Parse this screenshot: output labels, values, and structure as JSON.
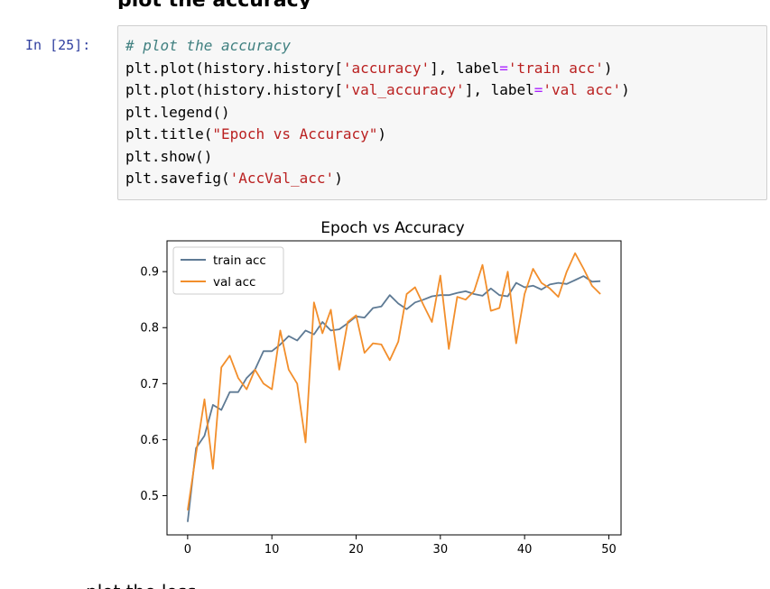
{
  "page": {
    "top_partial_text": "plot the accuracy",
    "bottom_partial_text": "plot the loss"
  },
  "cell": {
    "prompt": "In [25]:",
    "code_lines": [
      {
        "parts": [
          {
            "t": "# plot the accuracy",
            "c": "comment"
          }
        ]
      },
      {
        "parts": [
          {
            "t": "plt.plot(history.history[",
            "c": ""
          },
          {
            "t": "'accuracy'",
            "c": "str"
          },
          {
            "t": "], label",
            "c": ""
          },
          {
            "t": "=",
            "c": "eq"
          },
          {
            "t": "'train acc'",
            "c": "str"
          },
          {
            "t": ")",
            "c": ""
          }
        ]
      },
      {
        "parts": [
          {
            "t": "plt.plot(history.history[",
            "c": ""
          },
          {
            "t": "'val_accuracy'",
            "c": "str"
          },
          {
            "t": "], label",
            "c": ""
          },
          {
            "t": "=",
            "c": "eq"
          },
          {
            "t": "'val acc'",
            "c": "str"
          },
          {
            "t": ")",
            "c": ""
          }
        ]
      },
      {
        "parts": [
          {
            "t": "plt.legend()",
            "c": ""
          }
        ]
      },
      {
        "parts": [
          {
            "t": "plt.title(",
            "c": ""
          },
          {
            "t": "\"Epoch vs Accuracy\"",
            "c": "str"
          },
          {
            "t": ")",
            "c": ""
          }
        ]
      },
      {
        "parts": [
          {
            "t": "plt.show()",
            "c": ""
          }
        ]
      },
      {
        "parts": [
          {
            "t": "plt.savefig(",
            "c": ""
          },
          {
            "t": "'AccVal_acc'",
            "c": "str"
          },
          {
            "t": ")",
            "c": ""
          }
        ]
      }
    ]
  },
  "chart_data": {
    "type": "line",
    "title": "Epoch vs Accuracy",
    "xlabel": "",
    "ylabel": "",
    "xlim": [
      -2.45,
      51.45
    ],
    "ylim": [
      0.43,
      0.955
    ],
    "xticks": [
      0,
      10,
      20,
      30,
      40,
      50
    ],
    "yticks": [
      0.5,
      0.6,
      0.7,
      0.8,
      0.9
    ],
    "legend_position": "top-left",
    "grid": false,
    "x": [
      0,
      1,
      2,
      3,
      4,
      5,
      6,
      7,
      8,
      9,
      10,
      11,
      12,
      13,
      14,
      15,
      16,
      17,
      18,
      19,
      20,
      21,
      22,
      23,
      24,
      25,
      26,
      27,
      28,
      29,
      30,
      31,
      32,
      33,
      34,
      35,
      36,
      37,
      38,
      39,
      40,
      41,
      42,
      43,
      44,
      45,
      46,
      47,
      48,
      49
    ],
    "series": [
      {
        "name": "train acc",
        "color": "#5e7a94",
        "values": [
          0.453,
          0.585,
          0.607,
          0.662,
          0.653,
          0.685,
          0.685,
          0.71,
          0.725,
          0.758,
          0.758,
          0.77,
          0.785,
          0.777,
          0.795,
          0.788,
          0.81,
          0.795,
          0.797,
          0.808,
          0.82,
          0.818,
          0.835,
          0.838,
          0.858,
          0.843,
          0.833,
          0.845,
          0.85,
          0.856,
          0.858,
          0.858,
          0.862,
          0.865,
          0.86,
          0.857,
          0.87,
          0.858,
          0.856,
          0.88,
          0.872,
          0.875,
          0.868,
          0.877,
          0.88,
          0.878,
          0.885,
          0.892,
          0.882,
          0.883
        ]
      },
      {
        "name": "val acc",
        "color": "#f28e2b",
        "values": [
          0.474,
          0.575,
          0.672,
          0.548,
          0.729,
          0.75,
          0.71,
          0.69,
          0.725,
          0.7,
          0.69,
          0.795,
          0.725,
          0.7,
          0.595,
          0.845,
          0.79,
          0.832,
          0.725,
          0.81,
          0.822,
          0.755,
          0.772,
          0.77,
          0.742,
          0.775,
          0.86,
          0.872,
          0.84,
          0.81,
          0.893,
          0.762,
          0.855,
          0.85,
          0.865,
          0.912,
          0.83,
          0.835,
          0.9,
          0.772,
          0.86,
          0.905,
          0.88,
          0.87,
          0.855,
          0.9,
          0.933,
          0.905,
          0.875,
          0.86
        ]
      }
    ]
  }
}
